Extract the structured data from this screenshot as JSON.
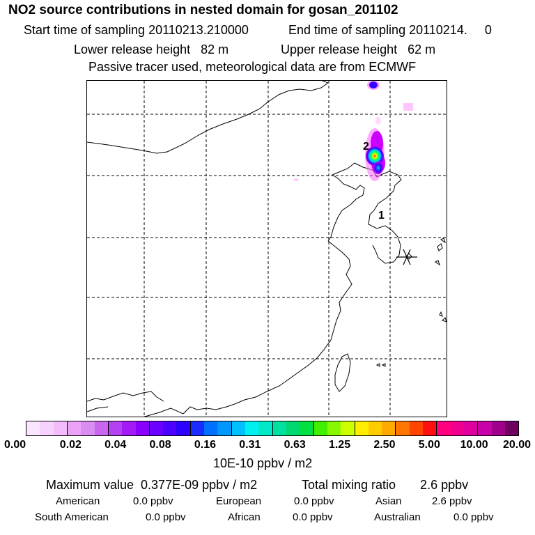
{
  "header": {
    "title": "NO2 source contributions in nested domain for gosan_201102",
    "start_sampling": "Start time of sampling 20110213.210000",
    "end_sampling": "End time of sampling 20110214.     0",
    "lower_release": "Lower release height   82 m",
    "upper_release": "Upper release height   62 m",
    "tracer_note": "Passive tracer used, meteorological data are from ECMWF"
  },
  "map": {
    "grid_lines": "dashed",
    "receptor_marker": "asterisk-icon",
    "labels": [
      "1",
      "2"
    ],
    "plume_colors": [
      "#ff66ff",
      "#cc00ff",
      "#3300ff",
      "#00ccff",
      "#00ff66",
      "#ffff00",
      "#ff2200"
    ]
  },
  "colorbar": {
    "colors": [
      "#fbe6ff",
      "#f7d2ff",
      "#f2bdfa",
      "#eba3f7",
      "#d98cf2",
      "#c866f0",
      "#b542f2",
      "#a31af5",
      "#8a00ff",
      "#6a00ff",
      "#4c00ff",
      "#2e00ff",
      "#1a2dff",
      "#0070ff",
      "#0098ff",
      "#00c0ff",
      "#00f0f0",
      "#00e8c8",
      "#00e0a0",
      "#00d870",
      "#00e040",
      "#40f000",
      "#88f800",
      "#ccff00",
      "#ffee00",
      "#ffcc00",
      "#ffaa00",
      "#ff7700",
      "#ff4400",
      "#ff1010",
      "#ff0080",
      "#f00090",
      "#e000a0",
      "#c800a8",
      "#a0008c",
      "#700060"
    ],
    "ticks": [
      "0.00",
      "0.02",
      "0.04",
      "0.08",
      "0.16",
      "0.31",
      "0.63",
      "1.25",
      "2.50",
      "5.00",
      "10.00",
      "20.00"
    ],
    "unit": "10E-10 ppbv / m2"
  },
  "footer": {
    "maximum_value": "Maximum value  0.377E-09 ppbv / m2",
    "total_mixing_ratio": "Total mixing ratio       2.6 ppbv",
    "sources": [
      {
        "name": "American",
        "value": "0.0 ppbv"
      },
      {
        "name": "European",
        "value": "0.0 ppbv"
      },
      {
        "name": "Asian",
        "value": "2.6 ppbv"
      },
      {
        "name": "South American",
        "value": "0.0 ppbv"
      },
      {
        "name": "African",
        "value": "0.0 ppbv"
      },
      {
        "name": "Australian",
        "value": "0.0 ppbv"
      }
    ]
  }
}
